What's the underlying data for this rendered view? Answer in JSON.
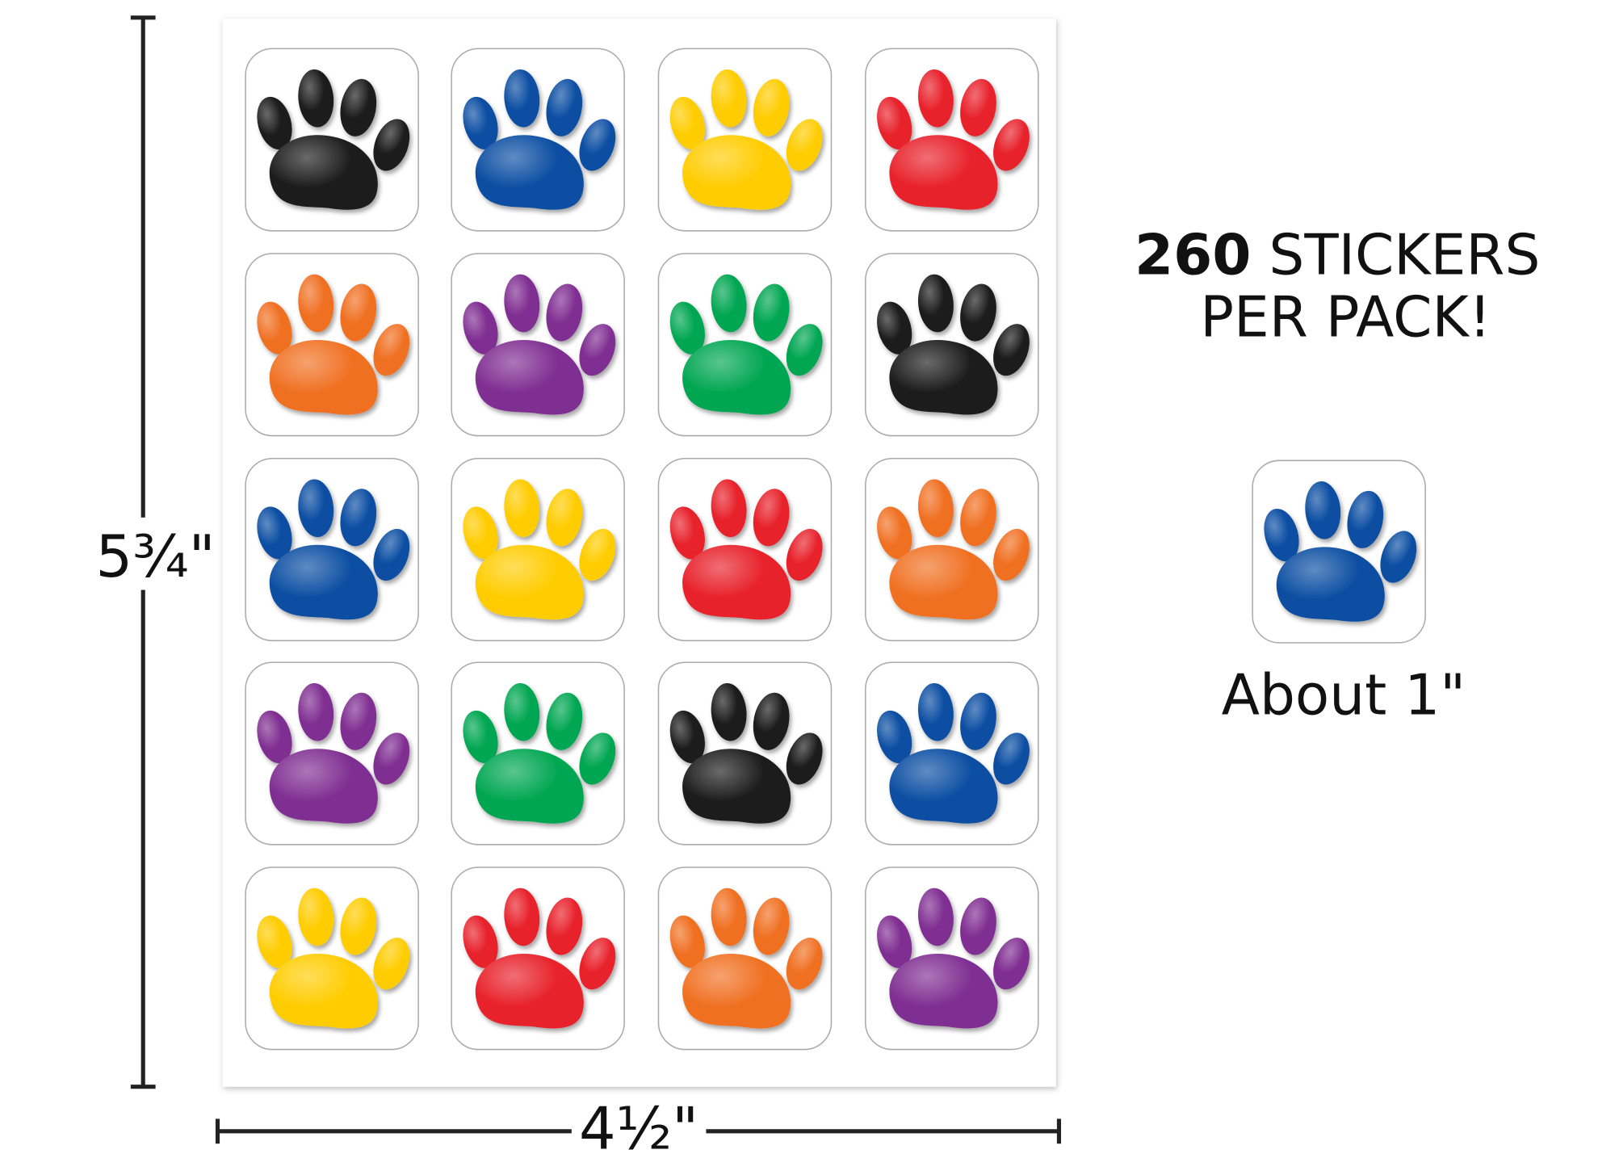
{
  "headline": {
    "count": "260",
    "text": "STICKERS",
    "line2": "PER PACK!"
  },
  "sample": {
    "caption": "About 1\""
  },
  "dimensions": {
    "height": "5¾\"",
    "width": "4½\""
  }
}
